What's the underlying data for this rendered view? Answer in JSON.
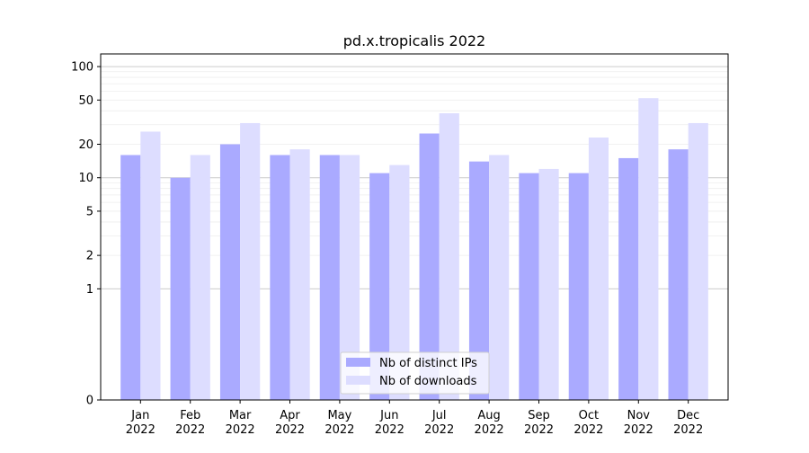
{
  "chart_data": {
    "type": "bar",
    "title": "pd.x.tropicalis 2022",
    "xlabel": "",
    "ylabel": "",
    "yscale": "symlog",
    "ylim": [
      0,
      130
    ],
    "yticks": [
      0,
      1,
      2,
      5,
      10,
      20,
      50,
      100
    ],
    "grid": "y",
    "legend_position": "bottom-center",
    "categories": [
      "Jan\n2022",
      "Feb\n2022",
      "Mar\n2022",
      "Apr\n2022",
      "May\n2022",
      "Jun\n2022",
      "Jul\n2022",
      "Aug\n2022",
      "Sep\n2022",
      "Oct\n2022",
      "Nov\n2022",
      "Dec\n2022"
    ],
    "series": [
      {
        "name": "Nb of distinct IPs",
        "color": "#aaaaff",
        "values": [
          16,
          10,
          20,
          16,
          16,
          11,
          25,
          14,
          11,
          11,
          15,
          18
        ]
      },
      {
        "name": "Nb of downloads",
        "color": "#ddddff",
        "values": [
          26,
          16,
          31,
          18,
          16,
          13,
          38,
          16,
          12,
          23,
          52,
          31
        ]
      }
    ]
  }
}
